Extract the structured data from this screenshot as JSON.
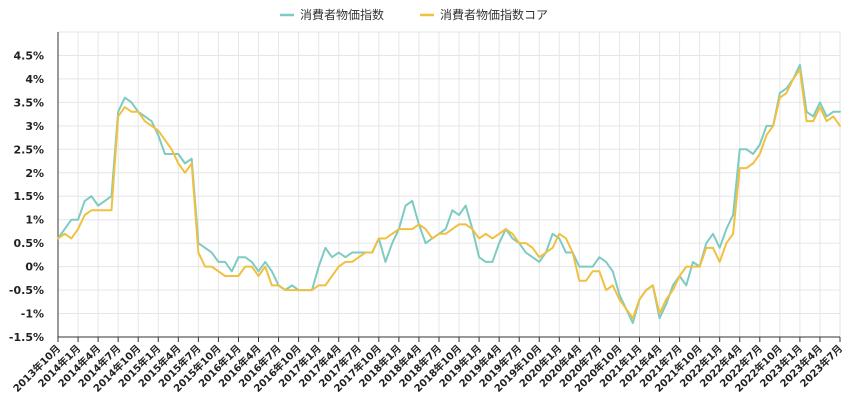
{
  "chart_data": {
    "type": "line",
    "title": "",
    "xlabel": "",
    "ylabel": "",
    "ylim": [
      -1.5,
      5.0
    ],
    "y_ticks": [
      -1.5,
      -1,
      -0.5,
      0,
      0.5,
      1,
      1.5,
      2,
      2.5,
      3,
      3.5,
      4,
      4.5
    ],
    "y_tick_labels": [
      "-1.5%",
      "-1%",
      "-0.5%",
      "0%",
      "0.5%",
      "1%",
      "1.5%",
      "2%",
      "2.5%",
      "3%",
      "3.5%",
      "4%",
      "4.5%"
    ],
    "grid": true,
    "legend_position": "top-center",
    "x_tick_labels": [
      "2013年10月",
      "2014年1月",
      "2014年4月",
      "2014年7月",
      "2014年10月",
      "2015年1月",
      "2015年4月",
      "2015年7月",
      "2015年10月",
      "2016年1月",
      "2016年4月",
      "2016年7月",
      "2016年10月",
      "2017年1月",
      "2017年4月",
      "2017年7月",
      "2017年10月",
      "2018年1月",
      "2018年4月",
      "2018年7月",
      "2018年10月",
      "2019年1月",
      "2019年4月",
      "2019年7月",
      "2019年10月",
      "2020年1月",
      "2020年4月",
      "2020年7月",
      "2020年10月",
      "2021年1月",
      "2021年4月",
      "2021年7月",
      "2021年10月",
      "2022年1月",
      "2022年4月",
      "2022年7月",
      "2022年10月",
      "2023年1月",
      "2023年4月",
      "2023年7月"
    ],
    "series": [
      {
        "name": "消費者物価指数",
        "color": "#7ecbc3",
        "values": [
          0.6,
          0.8,
          1.0,
          1.0,
          1.4,
          1.5,
          1.3,
          1.4,
          1.5,
          3.3,
          3.6,
          3.5,
          3.3,
          3.2,
          3.1,
          2.8,
          2.4,
          2.4,
          2.4,
          2.2,
          2.3,
          0.5,
          0.4,
          0.3,
          0.1,
          0.1,
          -0.1,
          0.2,
          0.2,
          0.1,
          -0.1,
          0.1,
          -0.1,
          -0.4,
          -0.5,
          -0.4,
          -0.5,
          -0.5,
          -0.5,
          0.0,
          0.4,
          0.2,
          0.3,
          0.2,
          0.3,
          0.3,
          0.3,
          0.3,
          0.6,
          0.1,
          0.5,
          0.8,
          1.3,
          1.4,
          0.9,
          0.5,
          0.6,
          0.7,
          0.8,
          1.2,
          1.1,
          1.3,
          0.8,
          0.2,
          0.1,
          0.1,
          0.5,
          0.8,
          0.6,
          0.5,
          0.3,
          0.2,
          0.1,
          0.3,
          0.7,
          0.6,
          0.3,
          0.3,
          0.0,
          0.0,
          0.0,
          0.2,
          0.1,
          -0.1,
          -0.6,
          -0.9,
          -1.2,
          -0.7,
          -0.5,
          -0.4,
          -1.1,
          -0.8,
          -0.4,
          -0.2,
          -0.4,
          0.1,
          0.0,
          0.5,
          0.7,
          0.4,
          0.8,
          1.1,
          2.5,
          2.5,
          2.4,
          2.6,
          3.0,
          3.0,
          3.7,
          3.8,
          4.0,
          4.3,
          3.3,
          3.2,
          3.5,
          3.2,
          3.3,
          3.3
        ]
      },
      {
        "name": "消費者物価指数コア",
        "color": "#f0c040",
        "values": [
          0.6,
          0.7,
          0.6,
          0.8,
          1.1,
          1.2,
          1.2,
          1.2,
          1.2,
          3.2,
          3.4,
          3.3,
          3.3,
          3.1,
          3.0,
          2.9,
          2.7,
          2.5,
          2.2,
          2.0,
          2.2,
          0.3,
          0.0,
          0.0,
          -0.1,
          -0.2,
          -0.2,
          -0.2,
          0.0,
          0.0,
          -0.2,
          0.0,
          -0.4,
          -0.4,
          -0.5,
          -0.5,
          -0.5,
          -0.5,
          -0.5,
          -0.4,
          -0.4,
          -0.2,
          0.0,
          0.1,
          0.1,
          0.2,
          0.3,
          0.3,
          0.6,
          0.6,
          0.7,
          0.8,
          0.8,
          0.8,
          0.9,
          0.8,
          0.6,
          0.7,
          0.7,
          0.8,
          0.9,
          0.9,
          0.8,
          0.6,
          0.7,
          0.6,
          0.7,
          0.8,
          0.7,
          0.5,
          0.5,
          0.4,
          0.2,
          0.3,
          0.4,
          0.7,
          0.6,
          0.3,
          -0.3,
          -0.3,
          -0.1,
          -0.1,
          -0.5,
          -0.4,
          -0.7,
          -0.9,
          -1.1,
          -0.7,
          -0.5,
          -0.4,
          -1.0,
          -0.7,
          -0.5,
          -0.2,
          0.0,
          0.0,
          0.0,
          0.4,
          0.4,
          0.1,
          0.5,
          0.7,
          2.1,
          2.1,
          2.2,
          2.4,
          2.8,
          3.0,
          3.6,
          3.7,
          4.0,
          4.2,
          3.1,
          3.1,
          3.4,
          3.1,
          3.2,
          3.0
        ]
      }
    ]
  }
}
